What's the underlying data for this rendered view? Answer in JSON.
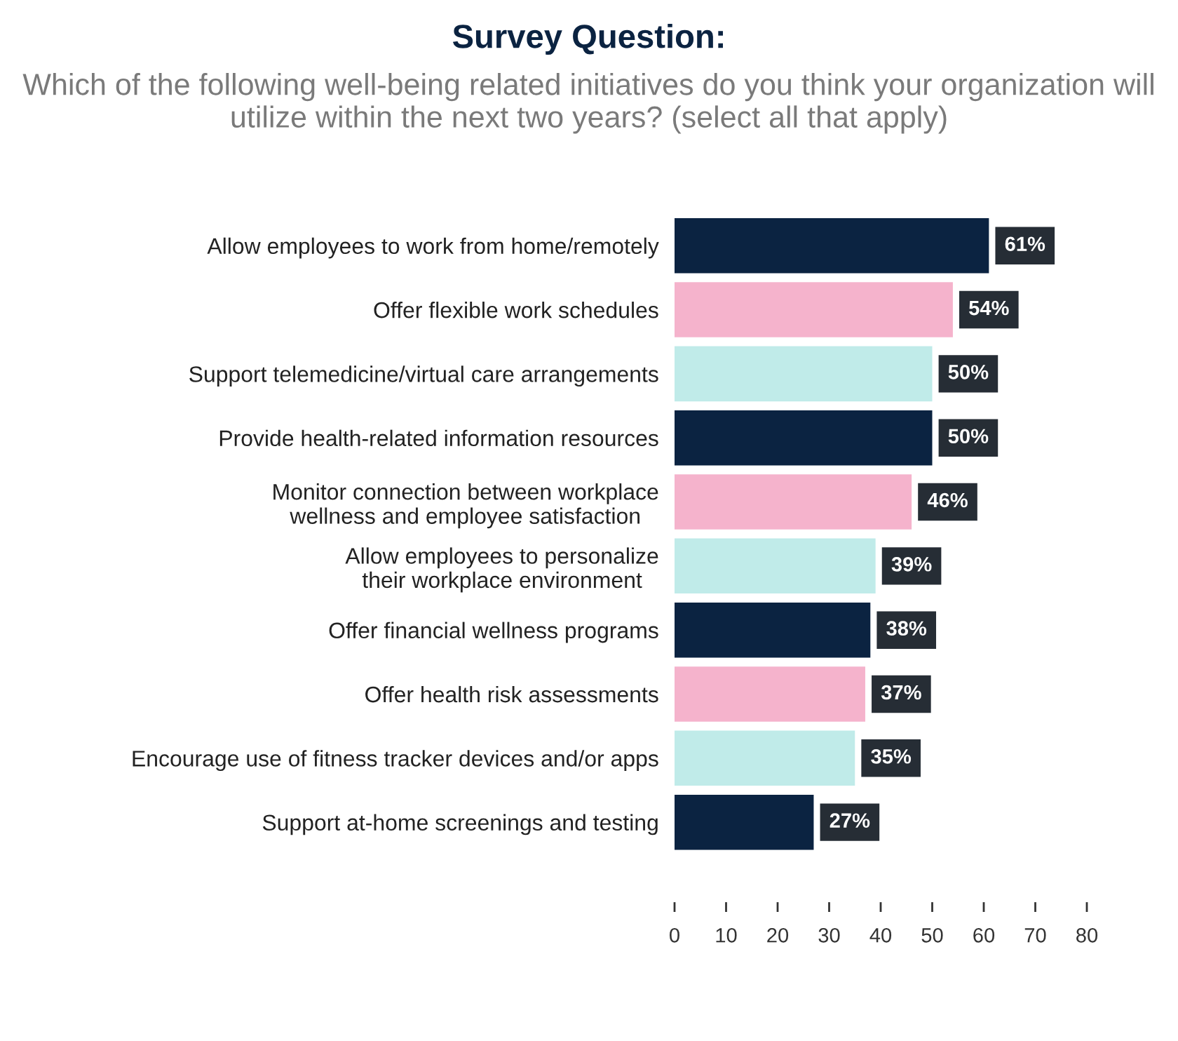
{
  "chart_data": {
    "type": "bar",
    "orientation": "horizontal",
    "title": "Survey Question:",
    "subtitle": "Which of the following well-being related initiatives do you think your organization will utilize within the next two years? (select all that apply)",
    "categories": [
      "Allow employees to work from home/remotely",
      "Offer flexible work schedules",
      "Support telemedicine/virtual care arrangements",
      "Provide health-related information resources",
      "Monitor connection between workplace\nwellness and employee satisfaction",
      "Allow employees to personalize\ntheir workplace environment",
      "Offer financial wellness programs",
      "Offer health risk assessments",
      "Encourage use of fitness tracker devices and/or apps",
      "Support at-home screenings and testing"
    ],
    "values": [
      61,
      54,
      50,
      50,
      46,
      39,
      38,
      37,
      35,
      27
    ],
    "colors": [
      "#0b2341",
      "#f5b3cc",
      "#c0ebe9",
      "#0b2341",
      "#f5b3cc",
      "#c0ebe9",
      "#0b2341",
      "#f5b3cc",
      "#c0ebe9",
      "#0b2341"
    ],
    "value_labels": [
      "61%",
      "54%",
      "50%",
      "50%",
      "46%",
      "39%",
      "38%",
      "37%",
      "35%",
      "27%"
    ],
    "xlim": [
      0,
      80
    ],
    "xticks": [
      0,
      10,
      20,
      30,
      40,
      50,
      60,
      70,
      80
    ],
    "grid": false,
    "legend": false
  }
}
